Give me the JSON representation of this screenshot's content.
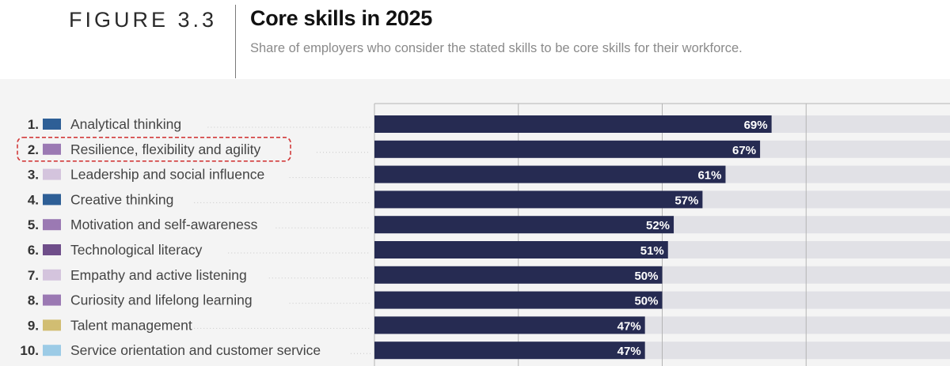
{
  "figure": {
    "label": "FIGURE 3.3",
    "title": "Core skills in 2025",
    "subtitle": "Share of employers who consider the stated skills to be core skills for their workforce."
  },
  "chart_data": {
    "type": "bar",
    "orientation": "horizontal",
    "xlim": [
      0,
      100
    ],
    "grid": true,
    "legend": "none",
    "categories": [
      "Analytical thinking",
      "Resilience, flexibility and agility",
      "Leadership and social influence",
      "Creative thinking",
      "Motivation and self-awareness",
      "Technological literacy",
      "Empathy and active listening",
      "Curiosity and lifelong learning",
      "Talent management",
      "Service orientation and customer service"
    ],
    "ranks": [
      "1.",
      "2.",
      "3.",
      "4.",
      "5.",
      "6.",
      "7.",
      "8.",
      "9.",
      "10."
    ],
    "values": [
      69,
      67,
      61,
      57,
      52,
      51,
      50,
      50,
      47,
      47
    ],
    "value_labels": [
      "69%",
      "67%",
      "61%",
      "57%",
      "52%",
      "51%",
      "50%",
      "50%",
      "47%",
      "47%"
    ],
    "swatch_colors": [
      "#2e5f96",
      "#9b79b3",
      "#d4c4dd",
      "#2e5f96",
      "#9b79b3",
      "#6f4e8a",
      "#d4c4dd",
      "#9b79b3",
      "#d1bd72",
      "#9ccbe6"
    ],
    "highlighted_index": 1,
    "colors": {
      "bar": "#262b52",
      "track": "#e1e1e6",
      "background": "#f4f4f4",
      "grid": "#b4b4b4",
      "highlight": "#d23a3a",
      "label_text": "#444444",
      "rank_text": "#333333",
      "value_text": "#ffffff"
    }
  }
}
